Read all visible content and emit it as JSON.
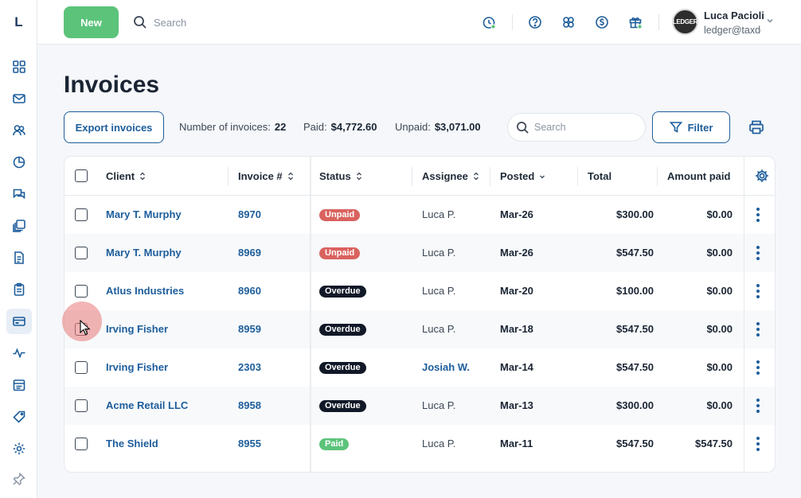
{
  "sidebar": {
    "logo": "L",
    "items": [
      {
        "icon": "dashboard-icon"
      },
      {
        "icon": "mail-icon"
      },
      {
        "icon": "clients-icon"
      },
      {
        "icon": "reports-pie-icon"
      },
      {
        "icon": "chat-icon"
      },
      {
        "icon": "documents-icon"
      },
      {
        "icon": "file-icon"
      },
      {
        "icon": "clipboard-icon"
      },
      {
        "icon": "billing-icon",
        "active": true
      },
      {
        "icon": "activity-icon"
      },
      {
        "icon": "calendar-icon"
      },
      {
        "icon": "tag-icon"
      },
      {
        "icon": "settings-icon"
      }
    ],
    "pin_icon": "pin-icon"
  },
  "topbar": {
    "new_label": "New",
    "search_placeholder": "Search",
    "user_name": "Luca Pacioli",
    "user_email": "ledger@taxdome.com",
    "avatar_text": "LEDGER"
  },
  "page": {
    "title": "Invoices",
    "export_label": "Export invoices",
    "count_label": "Number of invoices:",
    "count_value": "22",
    "paid_label": "Paid:",
    "paid_value": "$4,772.60",
    "unpaid_label": "Unpaid:",
    "unpaid_value": "$3,071.00",
    "search_placeholder": "Search",
    "filter_label": "Filter"
  },
  "table": {
    "columns": {
      "client": "Client",
      "invoice": "Invoice #",
      "status": "Status",
      "assignee": "Assignee",
      "posted": "Posted",
      "total": "Total",
      "amount_paid": "Amount paid"
    },
    "rows": [
      {
        "client": "Mary T. Murphy",
        "invoice": "8970",
        "status": "Unpaid",
        "assignee": "Luca P.",
        "posted": "Mar-26",
        "total": "$300.00",
        "paid": "$0.00"
      },
      {
        "client": "Mary T. Murphy",
        "invoice": "8969",
        "status": "Unpaid",
        "assignee": "Luca P.",
        "posted": "Mar-26",
        "total": "$547.50",
        "paid": "$0.00"
      },
      {
        "client": "Atlus Industries",
        "invoice": "8960",
        "status": "Overdue",
        "assignee": "Luca P.",
        "posted": "Mar-20",
        "total": "$100.00",
        "paid": "$0.00"
      },
      {
        "client": "Irving Fisher",
        "invoice": "8959",
        "status": "Overdue",
        "assignee": "Luca P.",
        "posted": "Mar-18",
        "total": "$547.50",
        "paid": "$0.00"
      },
      {
        "client": "Irving Fisher",
        "invoice": "2303",
        "status": "Overdue",
        "assignee": "Josiah W.",
        "posted": "Mar-14",
        "total": "$547.50",
        "paid": "$0.00"
      },
      {
        "client": "Acme Retail LLC",
        "invoice": "8958",
        "status": "Overdue",
        "assignee": "Luca P.",
        "posted": "Mar-13",
        "total": "$300.00",
        "paid": "$0.00"
      },
      {
        "client": "The Shield",
        "invoice": "8955",
        "status": "Paid",
        "assignee": "Luca P.",
        "posted": "Mar-11",
        "total": "$547.50",
        "paid": "$547.50"
      }
    ]
  },
  "colors": {
    "brand": "#1d5d9b",
    "new_button": "#5cc37a",
    "unpaid": "#d9625e",
    "overdue": "#111827",
    "paid": "#5cc37a"
  }
}
